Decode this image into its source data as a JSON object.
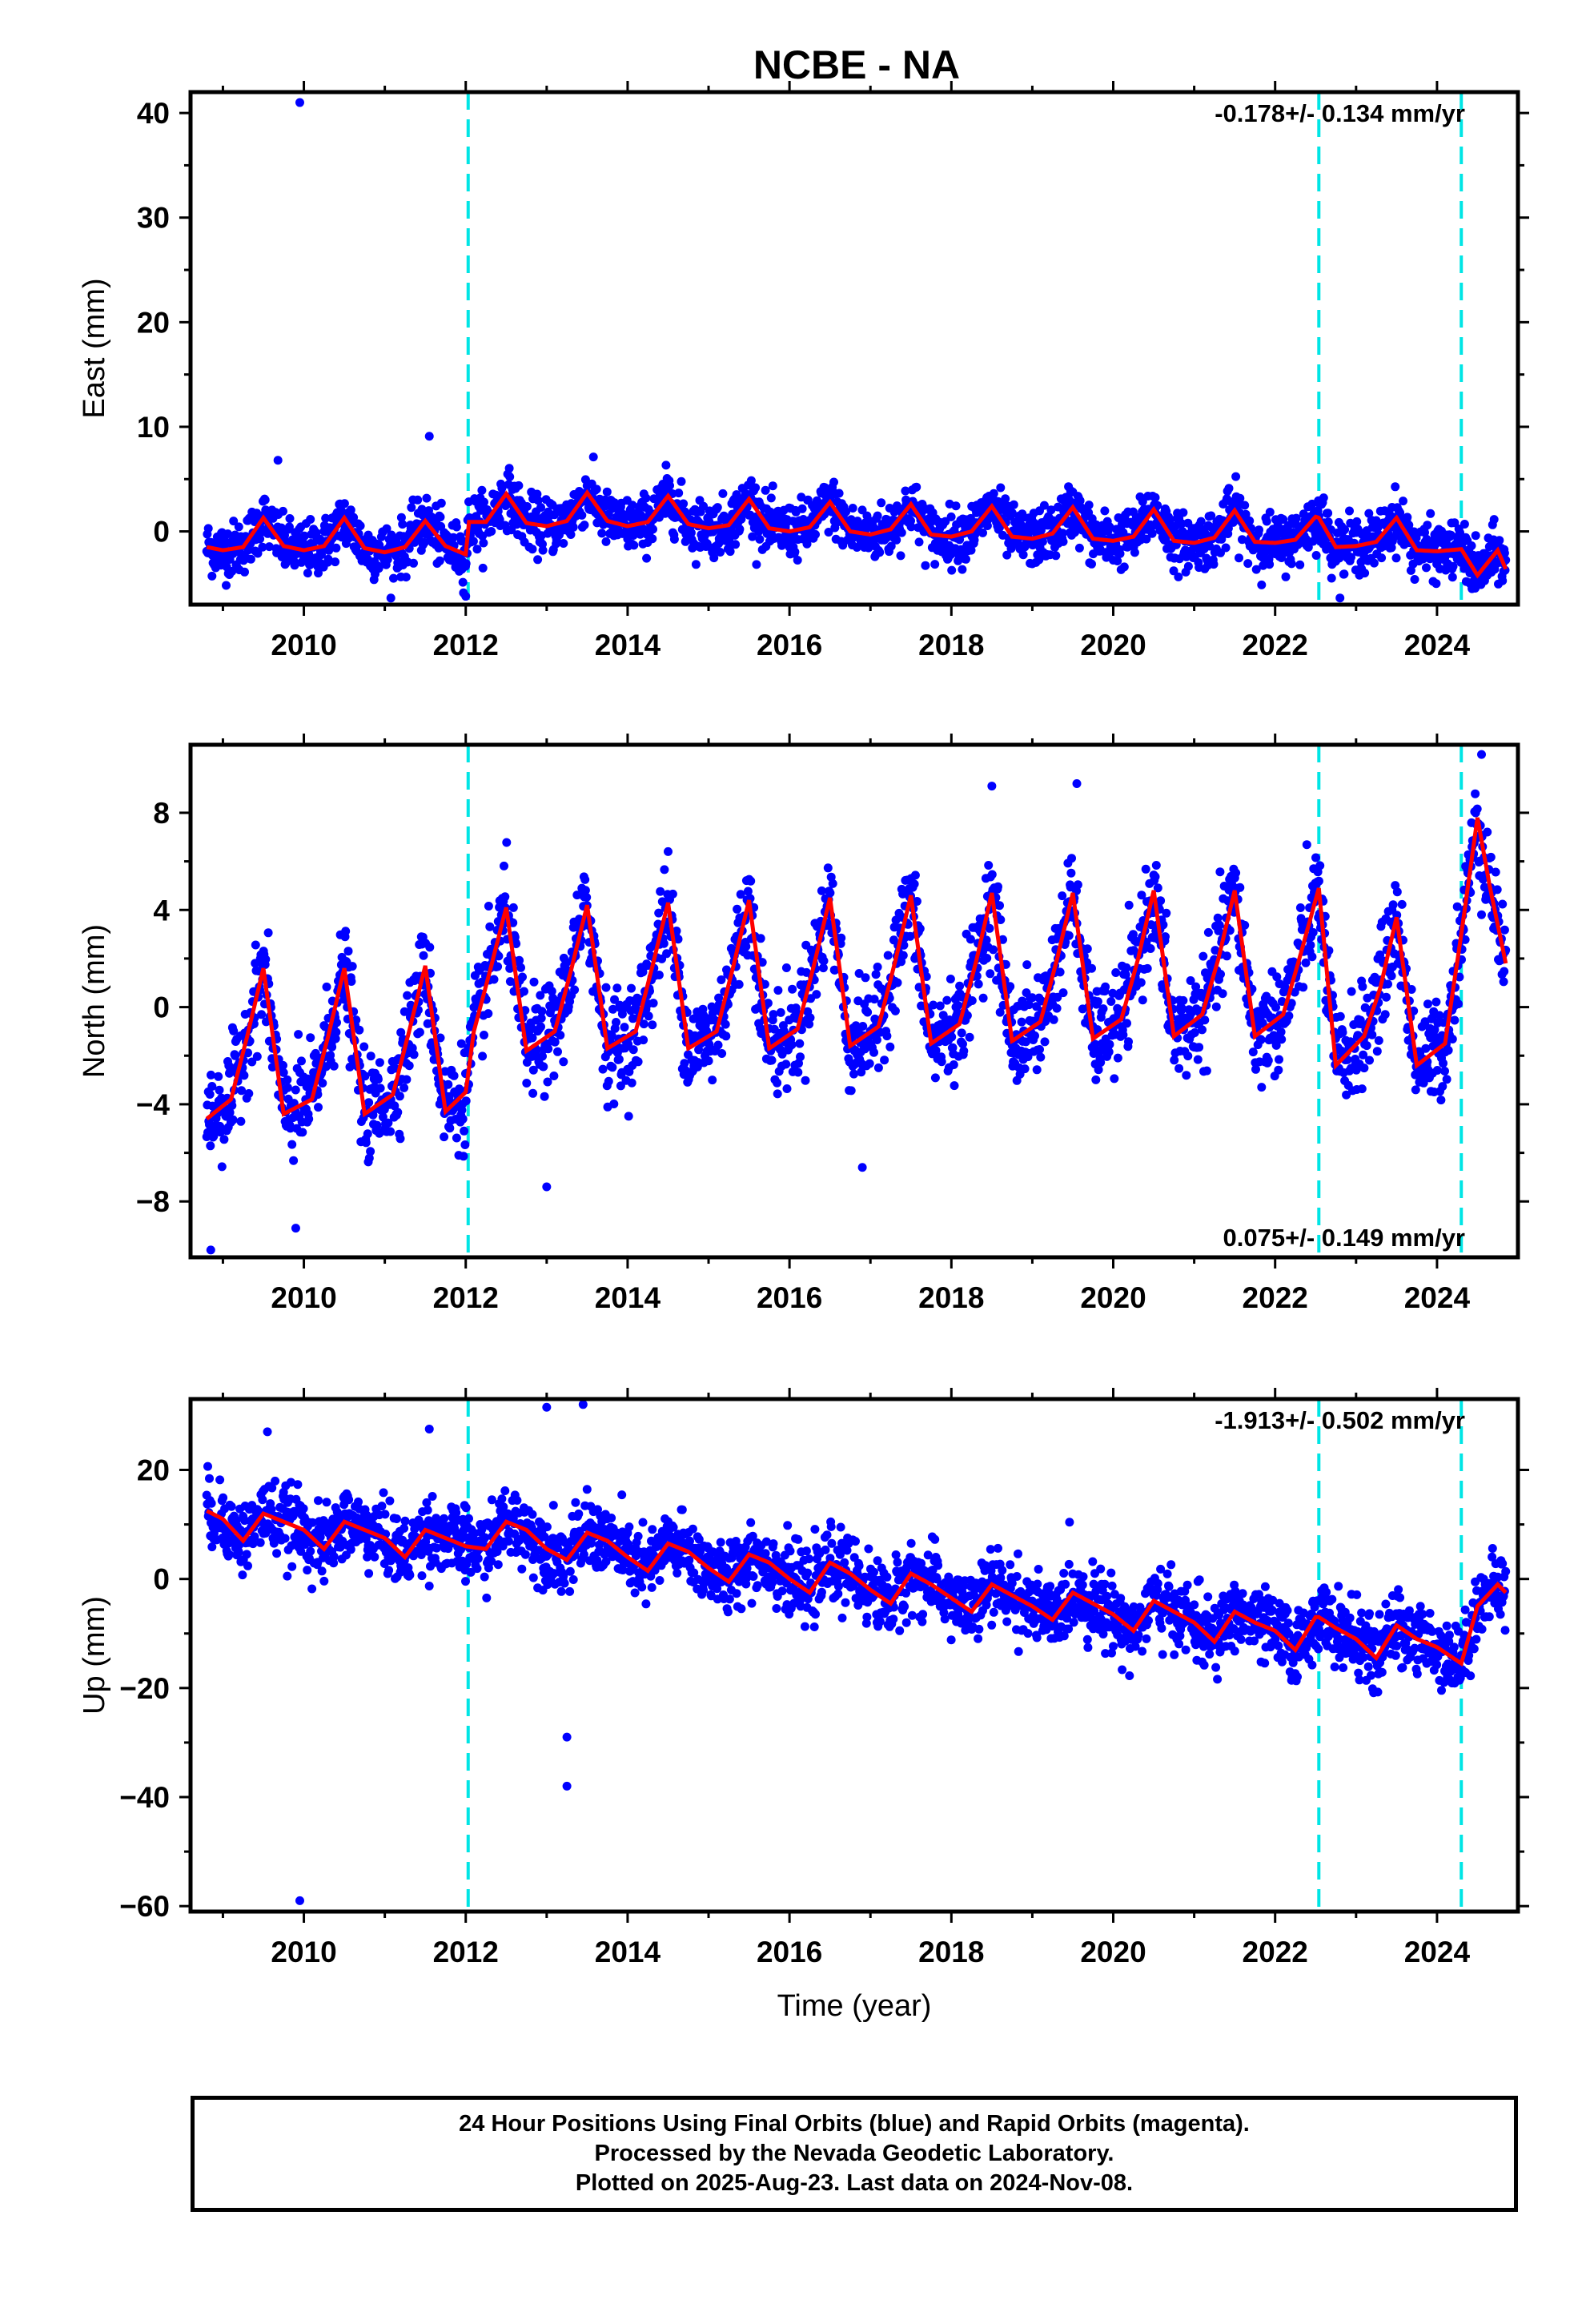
{
  "title": "NCBE - NA",
  "footer": {
    "line1": "24 Hour Positions Using Final Orbits (blue) and Rapid Orbits (magenta).",
    "line2": "Processed by the Nevada Geodetic Laboratory.",
    "line3": "Plotted on 2025-Aug-23. Last data on 2024-Nov-08."
  },
  "colors": {
    "points": "#0000ff",
    "model": "#ff0000",
    "events": "#00e5e5",
    "frame": "#000000"
  },
  "chart_data": [
    {
      "type": "scatter",
      "panel": "east",
      "ylabel": "East (mm)",
      "xlabel": "",
      "xlim": [
        2008.6,
        2025.0
      ],
      "ylim": [
        -7,
        42
      ],
      "yticks": [
        0,
        10,
        20,
        30,
        40
      ],
      "xticks": [
        2010,
        2012,
        2014,
        2016,
        2018,
        2020,
        2022,
        2024
      ],
      "rate_label": "-0.178+/- 0.134 mm/yr",
      "rate_position": "top-right",
      "event_lines": [
        2012.03,
        2022.54,
        2024.3
      ],
      "series": [
        {
          "role": "observations-final-orbits",
          "x_range": [
            2008.8,
            2024.85
          ],
          "trend_description": "daily scatter about the model, +/-3 mm",
          "outliers": [
            [
              2009.95,
              41.0
            ],
            [
              2009.68,
              6.8
            ],
            [
              2011.55,
              9.1
            ],
            [
              2012.0,
              -6.2
            ]
          ]
        },
        {
          "role": "model-fit",
          "x": [
            2008.8,
            2009.0,
            2009.25,
            2009.5,
            2009.75,
            2010.0,
            2010.25,
            2010.5,
            2010.75,
            2011.0,
            2011.25,
            2011.5,
            2011.75,
            2012.0,
            2012.04,
            2012.25,
            2012.5,
            2012.75,
            2013.0,
            2013.25,
            2013.5,
            2013.75,
            2014.0,
            2014.25,
            2014.5,
            2014.75,
            2015.0,
            2015.25,
            2015.5,
            2015.75,
            2016.0,
            2016.25,
            2016.5,
            2016.75,
            2017.0,
            2017.25,
            2017.5,
            2017.75,
            2018.0,
            2018.25,
            2018.5,
            2018.75,
            2019.0,
            2019.25,
            2019.5,
            2019.75,
            2020.0,
            2020.25,
            2020.5,
            2020.75,
            2021.0,
            2021.25,
            2021.5,
            2021.75,
            2022.0,
            2022.25,
            2022.5,
            2022.54,
            2022.75,
            2023.0,
            2023.25,
            2023.5,
            2023.75,
            2024.0,
            2024.3,
            2024.5,
            2024.75,
            2024.85
          ],
          "y": [
            -1.5,
            -1.8,
            -1.5,
            1.3,
            -1.4,
            -1.8,
            -1.4,
            1.3,
            -1.6,
            -2.0,
            -1.5,
            1.0,
            -1.4,
            -2.2,
            0.9,
            0.9,
            3.6,
            0.8,
            0.5,
            1.0,
            3.7,
            1.0,
            0.5,
            0.9,
            3.4,
            0.7,
            0.3,
            0.6,
            3.1,
            0.3,
            0.0,
            0.4,
            2.8,
            0.0,
            -0.3,
            0.2,
            2.6,
            -0.3,
            -0.5,
            0.0,
            2.4,
            -0.5,
            -0.7,
            -0.2,
            2.3,
            -0.7,
            -0.9,
            -0.5,
            2.1,
            -0.9,
            -1.1,
            -0.6,
            2.0,
            -1.0,
            -1.1,
            -0.8,
            1.4,
            1.3,
            -1.5,
            -1.4,
            -1.0,
            1.3,
            -1.8,
            -1.9,
            -1.7,
            -4.2,
            -1.8,
            -3.6
          ]
        }
      ]
    },
    {
      "type": "scatter",
      "panel": "north",
      "ylabel": "North (mm)",
      "xlabel": "",
      "xlim": [
        2008.6,
        2025.0
      ],
      "ylim": [
        -10.3,
        10.8
      ],
      "yticks": [
        -8,
        -4,
        0,
        4,
        8
      ],
      "xticks": [
        2010,
        2012,
        2014,
        2016,
        2018,
        2020,
        2022,
        2024
      ],
      "rate_label": "0.075+/- 0.149 mm/yr",
      "rate_position": "bottom-right",
      "event_lines": [
        2012.03,
        2022.54,
        2024.3
      ],
      "series": [
        {
          "role": "observations-final-orbits",
          "x_range": [
            2008.8,
            2024.85
          ],
          "trend_description": "strong annual oscillation about the model, +/-2 mm scatter",
          "outliers": [
            [
              2008.85,
              -10.0
            ],
            [
              2009.9,
              -9.1
            ],
            [
              2013.0,
              -7.4
            ],
            [
              2016.9,
              -6.6
            ],
            [
              2018.5,
              9.1
            ],
            [
              2019.55,
              9.2
            ],
            [
              2024.55,
              10.4
            ]
          ]
        },
        {
          "role": "model-fit",
          "x": [
            2008.8,
            2009.1,
            2009.3,
            2009.5,
            2009.75,
            2010.1,
            2010.3,
            2010.5,
            2010.75,
            2011.1,
            2011.3,
            2011.5,
            2011.75,
            2012.0,
            2012.1,
            2012.3,
            2012.5,
            2012.75,
            2013.1,
            2013.3,
            2013.5,
            2013.75,
            2014.1,
            2014.3,
            2014.5,
            2014.75,
            2015.1,
            2015.3,
            2015.5,
            2015.75,
            2016.1,
            2016.3,
            2016.5,
            2016.75,
            2017.1,
            2017.3,
            2017.5,
            2017.75,
            2018.1,
            2018.3,
            2018.5,
            2018.75,
            2019.1,
            2019.3,
            2019.5,
            2019.75,
            2020.1,
            2020.3,
            2020.5,
            2020.75,
            2021.1,
            2021.3,
            2021.5,
            2021.75,
            2022.1,
            2022.3,
            2022.54,
            2022.75,
            2023.1,
            2023.3,
            2023.5,
            2023.75,
            2024.1,
            2024.3,
            2024.5,
            2024.65,
            2024.85
          ],
          "y": [
            -4.6,
            -3.8,
            -1.2,
            1.6,
            -4.4,
            -3.8,
            -1.2,
            1.6,
            -4.4,
            -3.6,
            -1.0,
            1.7,
            -4.3,
            -3.5,
            -1.0,
            1.5,
            4.1,
            -1.8,
            -1.0,
            1.5,
            4.2,
            -1.7,
            -1.0,
            1.6,
            4.3,
            -1.7,
            -1.0,
            1.6,
            4.4,
            -1.7,
            -0.9,
            1.7,
            4.5,
            -1.6,
            -0.8,
            1.8,
            4.6,
            -1.5,
            -0.7,
            1.8,
            4.7,
            -1.4,
            -0.6,
            1.9,
            4.7,
            -1.3,
            -0.5,
            1.9,
            4.8,
            -1.2,
            -0.3,
            2.0,
            4.8,
            -1.2,
            -0.3,
            2.0,
            4.9,
            -2.4,
            -1.2,
            0.8,
            3.7,
            -2.4,
            -1.5,
            3.0,
            7.8,
            5.0,
            1.8
          ]
        }
      ]
    },
    {
      "type": "scatter",
      "panel": "up",
      "ylabel": "Up (mm)",
      "xlabel": "Time (year)",
      "xlim": [
        2008.6,
        2025.0
      ],
      "ylim": [
        -61,
        33
      ],
      "yticks": [
        -60,
        -40,
        -20,
        0,
        20
      ],
      "xticks": [
        2010,
        2012,
        2014,
        2016,
        2018,
        2020,
        2022,
        2024
      ],
      "rate_label": "-1.913+/- 0.502 mm/yr",
      "rate_position": "top-right",
      "event_lines": [
        2012.03,
        2022.54,
        2024.3
      ],
      "series": [
        {
          "role": "observations-final-orbits",
          "x_range": [
            2008.8,
            2024.85
          ],
          "trend_description": "declining trend about the model, +/-6 mm scatter",
          "outliers": [
            [
              2009.95,
              -59.0
            ],
            [
              2013.25,
              -29.0
            ],
            [
              2013.25,
              -38.0
            ],
            [
              2013.0,
              31.5
            ],
            [
              2013.45,
              32.0
            ],
            [
              2011.55,
              27.5
            ],
            [
              2009.55,
              27.0
            ]
          ]
        },
        {
          "role": "model-fit",
          "x": [
            2008.8,
            2009.0,
            2009.25,
            2009.5,
            2009.75,
            2010.0,
            2010.25,
            2010.5,
            2010.75,
            2011.0,
            2011.25,
            2011.5,
            2011.75,
            2012.0,
            2012.25,
            2012.5,
            2012.75,
            2013.0,
            2013.25,
            2013.5,
            2013.75,
            2014.0,
            2014.25,
            2014.5,
            2014.75,
            2015.0,
            2015.25,
            2015.5,
            2015.75,
            2016.0,
            2016.25,
            2016.5,
            2016.75,
            2017.0,
            2017.25,
            2017.5,
            2017.75,
            2018.0,
            2018.25,
            2018.5,
            2018.75,
            2019.0,
            2019.25,
            2019.5,
            2019.75,
            2020.0,
            2020.25,
            2020.5,
            2020.75,
            2021.0,
            2021.25,
            2021.5,
            2021.75,
            2022.0,
            2022.25,
            2022.5,
            2022.54,
            2022.75,
            2023.0,
            2023.25,
            2023.5,
            2023.75,
            2024.0,
            2024.3,
            2024.5,
            2024.75,
            2024.85
          ],
          "y": [
            12.5,
            11.0,
            7.0,
            12.0,
            10.5,
            9.0,
            5.5,
            10.5,
            9.0,
            7.5,
            4.0,
            9.0,
            7.5,
            6.0,
            5.5,
            10.5,
            9.0,
            5.5,
            3.5,
            8.5,
            7.0,
            4.0,
            1.5,
            6.5,
            5.0,
            2.0,
            -0.5,
            4.5,
            3.0,
            0.0,
            -2.5,
            3.0,
            1.0,
            -2.0,
            -4.5,
            1.0,
            -1.0,
            -3.5,
            -6.0,
            -1.0,
            -3.0,
            -5.0,
            -7.5,
            -2.5,
            -4.5,
            -6.5,
            -9.5,
            -4.0,
            -6.0,
            -8.0,
            -11.5,
            -6.0,
            -8.0,
            -9.5,
            -13.0,
            -7.0,
            -7.0,
            -9.0,
            -11.0,
            -14.5,
            -8.5,
            -11.0,
            -12.5,
            -15.5,
            -5.0,
            -1.0,
            -2.5
          ]
        }
      ]
    }
  ]
}
